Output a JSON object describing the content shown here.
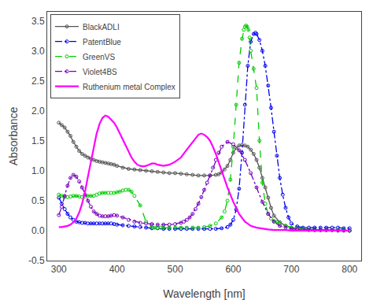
{
  "chart_data": {
    "type": "line",
    "xlabel": "Wavelength [nm]",
    "ylabel": "Absorbance",
    "xlim": [
      280,
      820
    ],
    "ylim": [
      -0.5,
      3.65
    ],
    "xticks": [
      300,
      400,
      500,
      600,
      700,
      800
    ],
    "yticks": [
      -0.5,
      {
        "value": 0.0,
        "label": "0.0"
      },
      0.5,
      {
        "value": 1.0,
        "label": "1.0"
      },
      1.5,
      {
        "value": 2.0,
        "label": "2.0"
      },
      2.5,
      {
        "value": 3.0,
        "label": "3.0"
      },
      3.5
    ],
    "grid": false,
    "legend": "upper left",
    "series": [
      {
        "name": "BlackADLI",
        "color": "#555555",
        "line_style": "solid",
        "marker": "circle-open",
        "x": [
          300,
          305,
          310,
          315,
          320,
          325,
          330,
          335,
          340,
          345,
          350,
          355,
          360,
          365,
          370,
          375,
          380,
          385,
          390,
          395,
          400,
          410,
          420,
          430,
          440,
          450,
          460,
          470,
          480,
          490,
          500,
          510,
          520,
          530,
          540,
          550,
          560,
          570,
          575,
          580,
          585,
          590,
          595,
          600,
          605,
          610,
          615,
          620,
          625,
          630,
          635,
          640,
          645,
          650,
          655,
          660,
          665,
          670,
          680,
          690,
          700,
          710,
          720,
          730,
          740,
          750,
          760,
          770,
          780,
          790,
          800
        ],
        "values": [
          1.8,
          1.76,
          1.72,
          1.65,
          1.58,
          1.48,
          1.4,
          1.33,
          1.28,
          1.25,
          1.22,
          1.2,
          1.18,
          1.16,
          1.15,
          1.14,
          1.13,
          1.12,
          1.11,
          1.1,
          1.08,
          1.05,
          1.03,
          1.02,
          1.01,
          1.0,
          0.99,
          0.98,
          0.97,
          0.96,
          0.96,
          0.95,
          0.94,
          0.93,
          0.92,
          0.92,
          0.92,
          0.93,
          0.94,
          0.97,
          1.02,
          1.08,
          1.18,
          1.3,
          1.38,
          1.42,
          1.43,
          1.42,
          1.4,
          1.35,
          1.28,
          1.18,
          1.05,
          0.88,
          0.72,
          0.55,
          0.38,
          0.25,
          0.14,
          0.08,
          0.05,
          0.04,
          0.03,
          0.02,
          0.02,
          0.01,
          0.01,
          0.01,
          0.01,
          0.01,
          0.0
        ]
      },
      {
        "name": "PatentBlue",
        "color": "#0000EE",
        "line_style": "dashdot",
        "marker": "circle-open",
        "x": [
          300,
          305,
          310,
          315,
          320,
          325,
          330,
          335,
          340,
          345,
          350,
          355,
          360,
          365,
          370,
          375,
          380,
          385,
          390,
          395,
          400,
          410,
          420,
          430,
          440,
          450,
          460,
          470,
          480,
          490,
          500,
          510,
          520,
          530,
          540,
          550,
          560,
          570,
          580,
          590,
          595,
          600,
          605,
          610,
          615,
          620,
          625,
          630,
          635,
          638,
          640,
          645,
          650,
          655,
          660,
          665,
          670,
          675,
          680,
          685,
          690,
          695,
          700,
          710,
          720,
          730,
          740,
          750,
          760,
          770,
          780,
          790,
          800
        ],
        "values": [
          0.55,
          0.45,
          0.36,
          0.28,
          0.22,
          0.18,
          0.15,
          0.14,
          0.13,
          0.13,
          0.12,
          0.12,
          0.12,
          0.12,
          0.12,
          0.12,
          0.12,
          0.12,
          0.12,
          0.11,
          0.1,
          0.09,
          0.08,
          0.07,
          0.06,
          0.05,
          0.04,
          0.04,
          0.03,
          0.03,
          0.03,
          0.03,
          0.03,
          0.03,
          0.03,
          0.03,
          0.03,
          0.03,
          0.04,
          0.06,
          0.1,
          0.18,
          0.35,
          0.7,
          1.3,
          2.1,
          2.75,
          3.15,
          3.28,
          3.3,
          3.28,
          3.18,
          3.0,
          2.75,
          2.42,
          2.05,
          1.65,
          1.25,
          0.88,
          0.6,
          0.38,
          0.22,
          0.12,
          0.07,
          0.05,
          0.05,
          0.05,
          0.05,
          0.05,
          0.05,
          0.05,
          0.04,
          0.04
        ]
      },
      {
        "name": "GreenVS",
        "color": "#00CC00",
        "line_style": "dash",
        "marker": "circle-open",
        "x": [
          300,
          305,
          310,
          315,
          320,
          325,
          330,
          335,
          340,
          345,
          350,
          355,
          360,
          365,
          370,
          375,
          380,
          385,
          390,
          395,
          400,
          405,
          410,
          415,
          420,
          425,
          430,
          440,
          450,
          460,
          465,
          470,
          475,
          480,
          490,
          500,
          510,
          520,
          530,
          540,
          550,
          560,
          570,
          580,
          585,
          590,
          595,
          600,
          605,
          610,
          615,
          618,
          620,
          622,
          624,
          626,
          628,
          630,
          635,
          640,
          645,
          650,
          655,
          660,
          665,
          670,
          675,
          680,
          690,
          700,
          710,
          720,
          730,
          740,
          750,
          760,
          770,
          780,
          790,
          800
        ],
        "values": [
          0.6,
          0.58,
          0.56,
          0.56,
          0.57,
          0.58,
          0.58,
          0.57,
          0.56,
          0.57,
          0.58,
          0.58,
          0.58,
          0.6,
          0.62,
          0.63,
          0.63,
          0.63,
          0.63,
          0.63,
          0.64,
          0.65,
          0.67,
          0.68,
          0.68,
          0.65,
          0.58,
          0.42,
          0.15,
          0.06,
          0.05,
          0.05,
          0.05,
          0.05,
          0.05,
          0.05,
          0.05,
          0.05,
          0.05,
          0.05,
          0.06,
          0.08,
          0.12,
          0.22,
          0.32,
          0.5,
          0.85,
          1.4,
          2.1,
          2.8,
          3.2,
          3.35,
          3.4,
          3.42,
          3.4,
          3.35,
          3.22,
          3.0,
          2.7,
          2.38,
          1.5,
          0.8,
          0.45,
          0.28,
          0.2,
          0.16,
          0.14,
          0.12,
          0.08,
          0.05,
          0.04,
          0.03,
          0.02,
          0.01,
          0.01,
          0.01,
          0.01,
          0.01,
          0.01,
          0.0
        ]
      },
      {
        "name": "Violet4BS",
        "color": "#7700BB",
        "line_style": "dashdot",
        "marker": "circle-open",
        "x": [
          300,
          305,
          310,
          315,
          320,
          325,
          330,
          335,
          340,
          345,
          350,
          355,
          360,
          365,
          370,
          375,
          380,
          385,
          390,
          395,
          400,
          410,
          420,
          430,
          440,
          450,
          460,
          470,
          480,
          490,
          500,
          510,
          515,
          520,
          525,
          530,
          535,
          540,
          545,
          550,
          555,
          560,
          565,
          570,
          575,
          580,
          590,
          600,
          610,
          620,
          630,
          640,
          650,
          660,
          670,
          680,
          690,
          700,
          710,
          720,
          730,
          740,
          750,
          760,
          770,
          780,
          790,
          800
        ],
        "values": [
          0.26,
          0.4,
          0.58,
          0.75,
          0.88,
          0.93,
          0.9,
          0.82,
          0.72,
          0.6,
          0.5,
          0.4,
          0.32,
          0.28,
          0.25,
          0.24,
          0.24,
          0.24,
          0.25,
          0.26,
          0.25,
          0.22,
          0.18,
          0.15,
          0.13,
          0.12,
          0.11,
          0.1,
          0.1,
          0.1,
          0.11,
          0.13,
          0.15,
          0.18,
          0.22,
          0.28,
          0.36,
          0.45,
          0.56,
          0.68,
          0.8,
          0.92,
          1.05,
          1.18,
          1.3,
          1.4,
          1.48,
          1.44,
          1.34,
          1.18,
          0.96,
          0.72,
          0.48,
          0.28,
          0.15,
          0.08,
          0.05,
          0.03,
          0.02,
          0.02,
          0.01,
          0.01,
          0.01,
          0.01,
          0.01,
          0.0,
          0.0,
          0.0
        ]
      },
      {
        "name": "Ruthenium metal Complex",
        "color": "#FF00FF",
        "line_style": "solid",
        "x": [
          300,
          305,
          310,
          315,
          320,
          325,
          330,
          335,
          340,
          345,
          350,
          355,
          360,
          365,
          370,
          375,
          380,
          385,
          390,
          395,
          400,
          405,
          410,
          415,
          420,
          425,
          430,
          435,
          440,
          445,
          450,
          455,
          460,
          465,
          470,
          480,
          490,
          500,
          510,
          520,
          530,
          535,
          540,
          545,
          550,
          555,
          560,
          565,
          570,
          580,
          590,
          600,
          610,
          620,
          630,
          640,
          650,
          660,
          670,
          680,
          690,
          700,
          710,
          720,
          730,
          740,
          750,
          760,
          770,
          780,
          790,
          800
        ],
        "values": [
          0.06,
          0.06,
          0.07,
          0.08,
          0.1,
          0.14,
          0.2,
          0.3,
          0.45,
          0.65,
          0.9,
          1.15,
          1.4,
          1.62,
          1.78,
          1.88,
          1.92,
          1.9,
          1.85,
          1.8,
          1.72,
          1.62,
          1.52,
          1.42,
          1.32,
          1.22,
          1.15,
          1.1,
          1.08,
          1.07,
          1.08,
          1.1,
          1.12,
          1.12,
          1.1,
          1.08,
          1.1,
          1.15,
          1.22,
          1.35,
          1.48,
          1.55,
          1.6,
          1.62,
          1.6,
          1.56,
          1.5,
          1.4,
          1.28,
          1.0,
          0.72,
          0.48,
          0.28,
          0.15,
          0.08,
          0.05,
          0.03,
          0.02,
          0.01,
          0.01,
          0.01,
          0.0,
          0.0,
          0.0,
          0.0,
          0.0,
          0.0,
          0.0,
          0.0,
          0.0,
          0.0,
          0.0
        ]
      }
    ]
  }
}
